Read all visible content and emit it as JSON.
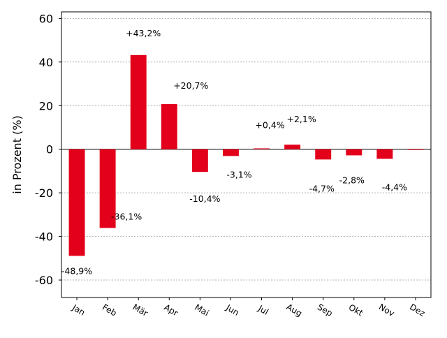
{
  "chart_data": {
    "type": "bar",
    "title": "",
    "xlabel": "",
    "ylabel": "in Prozent (%)",
    "categories": [
      "Jan",
      "Feb",
      "Mär",
      "Apr",
      "Mai",
      "Jun",
      "Jul",
      "Aug",
      "Sep",
      "Okt",
      "Nov",
      "Dez"
    ],
    "values": [
      -48.9,
      -36.1,
      43.2,
      20.7,
      -10.4,
      -3.1,
      0.4,
      2.1,
      -4.7,
      -2.8,
      -4.4,
      0
    ],
    "data_labels": [
      "-48,9%",
      "-36,1%",
      "+43,2%",
      "+20,7%",
      "-10,4%",
      "-3,1%",
      "+0,4%",
      "+2,1%",
      "-4,7%",
      "-2,8%",
      "-4,4%",
      ""
    ],
    "yticks": [
      60,
      40,
      20,
      0,
      -20,
      -40,
      -60
    ],
    "ytick_labels": [
      "60",
      "40",
      "20",
      "0",
      "-20",
      "-40",
      "-60"
    ],
    "ylim": [
      -68,
      63
    ],
    "grid": "horizontal dotted",
    "bar_color": "#e2001a"
  }
}
